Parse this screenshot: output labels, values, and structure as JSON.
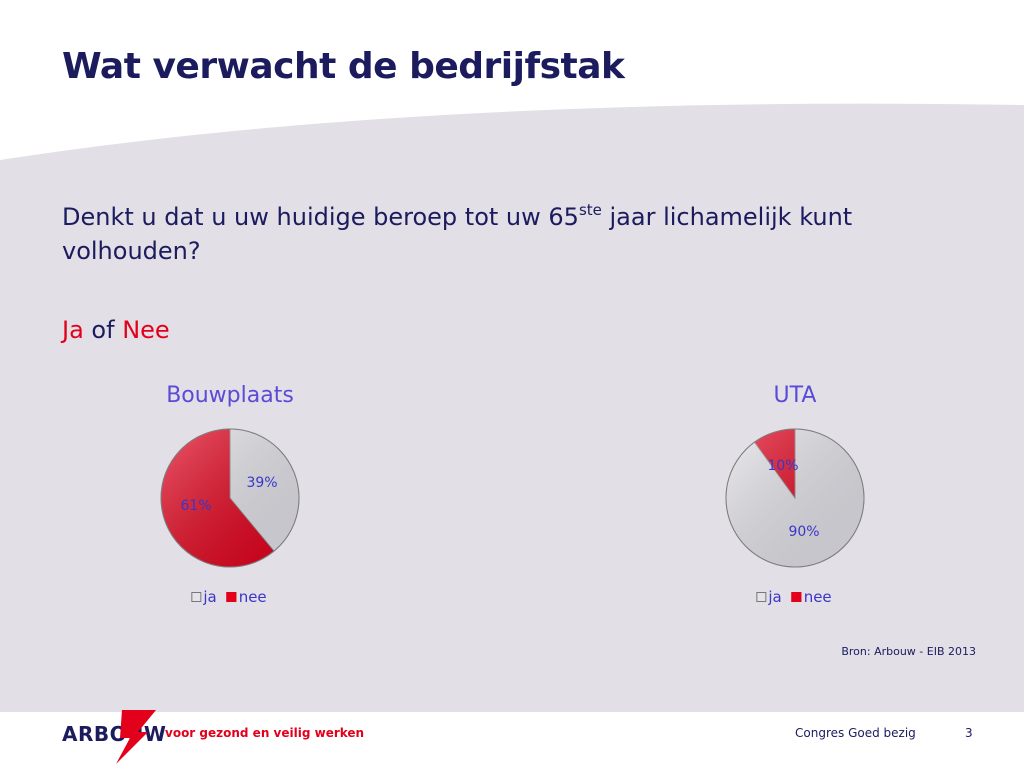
{
  "slide": {
    "title": "Wat verwacht de bedrijfstak",
    "question_part1": "Denkt u dat u uw huidige beroep tot uw 65",
    "question_sup": "ste",
    "question_part2": " jaar lichamelijk kunt volhouden?",
    "choice_ja": "Ja",
    "choice_of": " of ",
    "choice_nee": "Nee",
    "source": "Bron: Arbouw - EIB 2013"
  },
  "footer": {
    "logo": "ARBOUW",
    "tagline": "voor gezond en veilig werken",
    "event": "Congres Goed bezig",
    "page": "3"
  },
  "colors": {
    "ja": "#e4e3ea",
    "nee": "#e3001b",
    "title": "#1b1b5e",
    "accent_red": "#e3001b",
    "chart_title": "#5a4bd6"
  },
  "chart_data": [
    {
      "type": "pie",
      "title": "Bouwplaats",
      "legend": [
        "ja",
        "nee"
      ],
      "slices": [
        {
          "name": "ja",
          "value": 39,
          "label": "39%"
        },
        {
          "name": "nee",
          "value": 61,
          "label": "61%"
        }
      ]
    },
    {
      "type": "pie",
      "title": "UTA",
      "legend": [
        "ja",
        "nee"
      ],
      "slices": [
        {
          "name": "ja",
          "value": 90,
          "label": "90%"
        },
        {
          "name": "nee",
          "value": 10,
          "label": "10%"
        }
      ]
    }
  ]
}
